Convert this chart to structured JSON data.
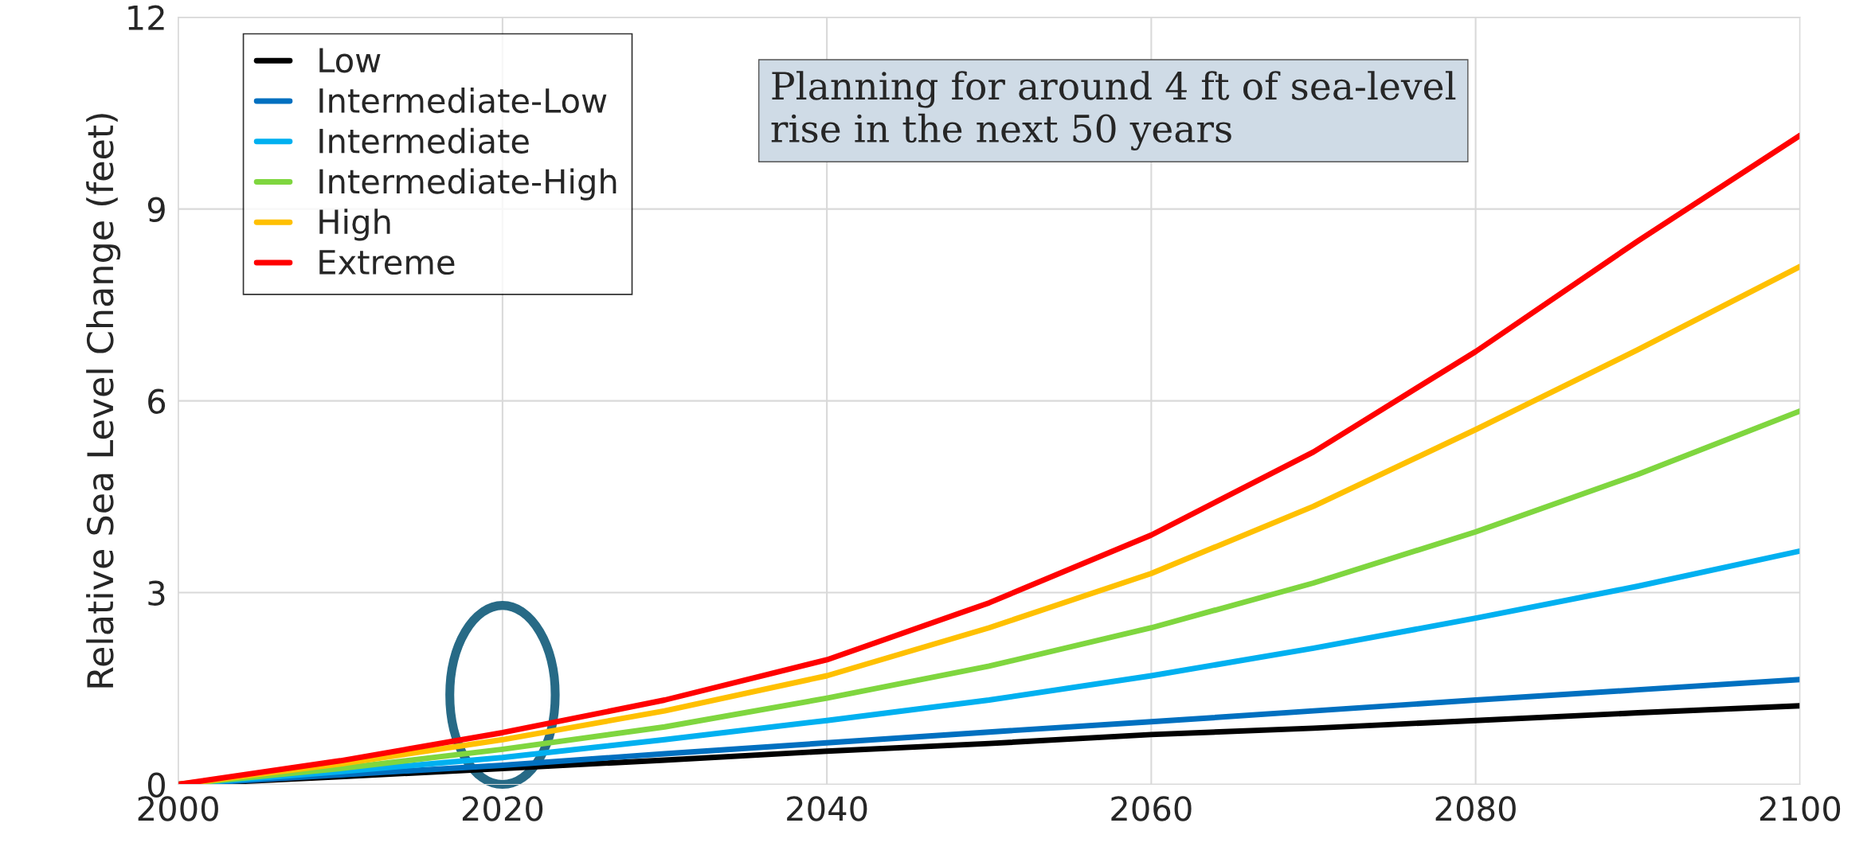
{
  "chart_data": {
    "type": "line",
    "ylabel": "Relative Sea Level Change (feet)",
    "x": [
      2000,
      2010,
      2020,
      2030,
      2040,
      2050,
      2060,
      2070,
      2080,
      2090,
      2100
    ],
    "series": [
      {
        "name": "Low",
        "color": "#000000",
        "values": [
          0,
          0.12,
          0.25,
          0.38,
          0.52,
          0.64,
          0.78,
          0.88,
          1.0,
          1.12,
          1.23
        ]
      },
      {
        "name": "Intermediate-Low",
        "color": "#0070c0",
        "values": [
          0,
          0.15,
          0.3,
          0.48,
          0.65,
          0.82,
          0.98,
          1.15,
          1.32,
          1.48,
          1.64
        ]
      },
      {
        "name": "Intermediate",
        "color": "#00b0f0",
        "values": [
          0,
          0.2,
          0.42,
          0.7,
          1.0,
          1.32,
          1.7,
          2.13,
          2.6,
          3.1,
          3.65
        ]
      },
      {
        "name": "Intermediate-High",
        "color": "#7fd63f",
        "values": [
          0,
          0.25,
          0.55,
          0.9,
          1.35,
          1.85,
          2.45,
          3.15,
          3.95,
          4.85,
          5.84
        ]
      },
      {
        "name": "High",
        "color": "#ffc000",
        "values": [
          0,
          0.32,
          0.7,
          1.15,
          1.7,
          2.45,
          3.3,
          4.35,
          5.55,
          6.8,
          8.1
        ]
      },
      {
        "name": "Extreme",
        "color": "#ff0000",
        "values": [
          0,
          0.37,
          0.81,
          1.32,
          1.95,
          2.84,
          3.9,
          5.2,
          6.77,
          8.5,
          10.15
        ]
      }
    ],
    "xlim": [
      2000,
      2100
    ],
    "xticks": [
      2000,
      2020,
      2040,
      2060,
      2080,
      2100
    ],
    "ylim": [
      0,
      12
    ],
    "yticks": [
      0,
      3,
      6,
      9,
      12
    ],
    "grid": true,
    "legend": "top left",
    "line_style": "solid",
    "marker": "none",
    "annotations": [
      "Planning for around 4 ft of sea-level rise in the next 50 years"
    ]
  }
}
